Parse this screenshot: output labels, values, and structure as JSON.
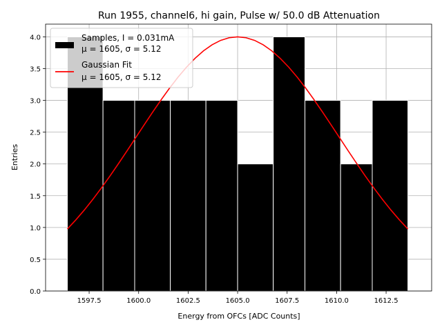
{
  "chart_data": {
    "type": "bar",
    "title": "Run 1955, channel6, hi gain, Pulse w/ 50.0 dB Attenuation",
    "xlabel": "Energy from OFCs [ADC Counts]",
    "ylabel": "Entries",
    "xlim": [
      1595.3,
      1614.8
    ],
    "ylim": [
      0,
      4.2
    ],
    "grid": true,
    "legend_position": "top-left",
    "x_ticks": [
      "1597.5",
      "1600.0",
      "1602.5",
      "1605.0",
      "1607.5",
      "1610.0",
      "1612.5"
    ],
    "x_tick_values": [
      1597.5,
      1600.0,
      1602.5,
      1605.0,
      1607.5,
      1610.0,
      1612.5
    ],
    "y_ticks": [
      "0.0",
      "0.5",
      "1.0",
      "1.5",
      "2.0",
      "2.5",
      "3.0",
      "3.5",
      "4.0"
    ],
    "y_tick_values": [
      0,
      0.5,
      1.0,
      1.5,
      2.0,
      2.5,
      3.0,
      3.5,
      4.0
    ],
    "histogram": {
      "name": "Samples, I = 0.031mA",
      "stats": "μ = 1605, σ = 5.12",
      "color": "#000000",
      "bin_edges": [
        1596.4,
        1598.2,
        1599.8,
        1601.6,
        1603.4,
        1605.0,
        1606.8,
        1608.4,
        1610.2,
        1611.8,
        1613.6
      ],
      "values": [
        4,
        3,
        3,
        3,
        3,
        2,
        4,
        3,
        2,
        3
      ]
    },
    "fit": {
      "name": "Gaussian Fit",
      "stats": "μ = 1605, σ = 5.12",
      "color": "#ff0000",
      "mu": 1605.0,
      "sigma": 5.12,
      "amplitude": 4.0,
      "x_range": [
        1596.4,
        1613.6
      ]
    }
  }
}
